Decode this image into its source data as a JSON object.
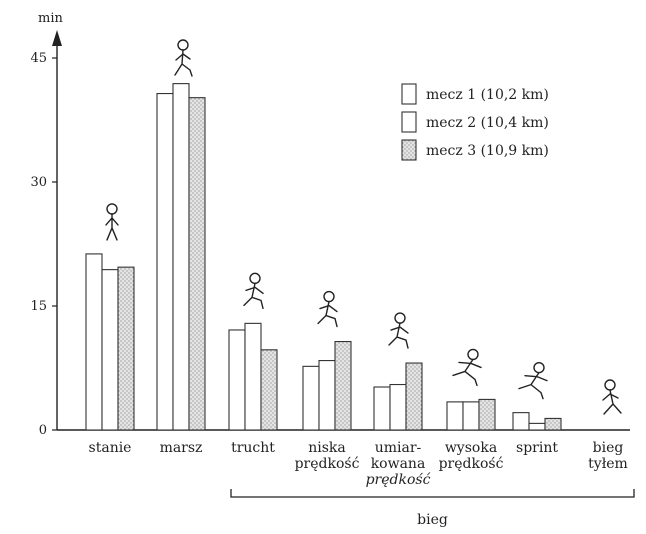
{
  "chart_data": {
    "type": "bar",
    "ylabel": "min",
    "ylim": [
      0,
      45
    ],
    "yticks": [
      0,
      15,
      30,
      45
    ],
    "legend_position": "top-right",
    "grid": false,
    "categories": [
      {
        "lines": [
          "stanie"
        ]
      },
      {
        "lines": [
          "marsz"
        ]
      },
      {
        "lines": [
          "trucht"
        ]
      },
      {
        "lines": [
          "niska",
          "prędkość"
        ]
      },
      {
        "lines": [
          "umiar-",
          "kowana"
        ],
        "italic_line": "prędkość"
      },
      {
        "lines": [
          "wysoka",
          "prędkość"
        ]
      },
      {
        "lines": [
          "sprint"
        ]
      },
      {
        "lines": [
          "bieg",
          "tyłem"
        ]
      }
    ],
    "series": [
      {
        "name": "mecz 1 (10,2 km)",
        "pattern": "blank",
        "values": [
          21.3,
          40.7,
          12.1,
          7.7,
          5.2,
          3.4,
          2.1,
          0
        ]
      },
      {
        "name": "mecz 2 (10,4 km)",
        "pattern": "blank",
        "values": [
          19.4,
          41.9,
          12.9,
          8.4,
          5.5,
          3.4,
          0.8,
          0
        ]
      },
      {
        "name": "mecz 3 (10,9 km)",
        "pattern": "dotted",
        "values": [
          19.7,
          40.2,
          9.7,
          10.7,
          8.1,
          3.7,
          1.4,
          0
        ]
      }
    ],
    "group": {
      "label": "bieg",
      "from_category": 2,
      "to_category": 7
    },
    "colors": {
      "bar_fill": "#ffffff",
      "dotted_fill": "#e4e4e4",
      "dots": "#9a9a9a",
      "outline": "#333333"
    }
  }
}
